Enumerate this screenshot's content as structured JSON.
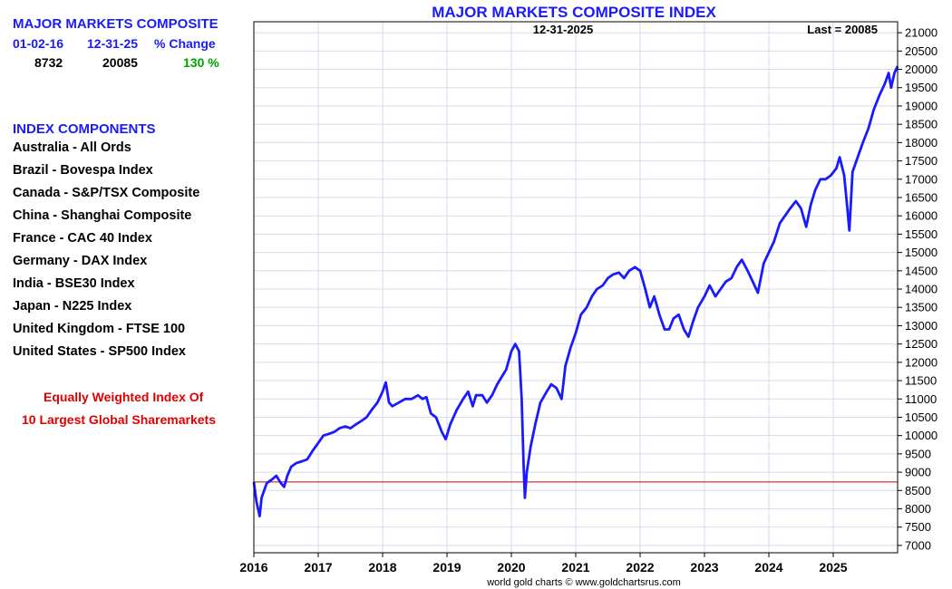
{
  "sidebar": {
    "title": "MAJOR MARKETS COMPOSITE",
    "headers": {
      "start": "01-02-16",
      "end": "12-31-25",
      "change": "% Change"
    },
    "values": {
      "start": "8732",
      "end": "20085",
      "change": "130 %"
    },
    "components_title": "INDEX COMPONENTS",
    "components": [
      "Australia - All Ords",
      "Brazil - Bovespa Index",
      "Canada - S&P/TSX Composite",
      "China - Shanghai Composite",
      "France - CAC 40 Index",
      "Germany - DAX Index",
      "India - BSE30 Index",
      "Japan - N225 Index",
      "United Kingdom - FTSE 100",
      "United States - SP500 Index"
    ],
    "note_line1": "Equally Weighted Index Of",
    "note_line2": "10 Largest Global Sharemarkets"
  },
  "colors": {
    "series": "#1a1aff",
    "grid": "#d8d8ee",
    "reference": "#cc0000",
    "change_positive": "#00a000"
  },
  "chart_data": {
    "type": "line",
    "title": "MAJOR MARKETS COMPOSITE INDEX",
    "date_label": "12-31-2025",
    "last_label": "Last = 20085",
    "credit": "world gold charts © www.goldchartsrus.com",
    "xlim": [
      2016,
      2026
    ],
    "ylim": [
      6800,
      21300
    ],
    "x_ticks": [
      2016,
      2017,
      2018,
      2019,
      2020,
      2021,
      2022,
      2023,
      2024,
      2025
    ],
    "y_ticks": [
      7000,
      7500,
      8000,
      8500,
      9000,
      9500,
      10000,
      10500,
      11000,
      11500,
      12000,
      12500,
      13000,
      13500,
      14000,
      14500,
      15000,
      15500,
      16000,
      16500,
      17000,
      17500,
      18000,
      18500,
      19000,
      19500,
      20000,
      20500,
      21000
    ],
    "reference_line": 8732,
    "series": [
      {
        "name": "Major Markets Composite",
        "points": [
          [
            2016.0,
            8732
          ],
          [
            2016.04,
            8200
          ],
          [
            2016.09,
            7800
          ],
          [
            2016.12,
            8300
          ],
          [
            2016.2,
            8700
          ],
          [
            2016.28,
            8800
          ],
          [
            2016.35,
            8900
          ],
          [
            2016.42,
            8700
          ],
          [
            2016.47,
            8600
          ],
          [
            2016.52,
            8900
          ],
          [
            2016.58,
            9150
          ],
          [
            2016.66,
            9250
          ],
          [
            2016.75,
            9300
          ],
          [
            2016.83,
            9350
          ],
          [
            2016.92,
            9600
          ],
          [
            2017.0,
            9800
          ],
          [
            2017.08,
            10000
          ],
          [
            2017.17,
            10050
          ],
          [
            2017.25,
            10100
          ],
          [
            2017.33,
            10200
          ],
          [
            2017.42,
            10250
          ],
          [
            2017.5,
            10200
          ],
          [
            2017.58,
            10300
          ],
          [
            2017.67,
            10400
          ],
          [
            2017.75,
            10500
          ],
          [
            2017.83,
            10700
          ],
          [
            2017.92,
            10900
          ],
          [
            2018.0,
            11200
          ],
          [
            2018.05,
            11450
          ],
          [
            2018.1,
            10900
          ],
          [
            2018.15,
            10800
          ],
          [
            2018.25,
            10900
          ],
          [
            2018.35,
            11000
          ],
          [
            2018.45,
            11000
          ],
          [
            2018.55,
            11100
          ],
          [
            2018.62,
            11000
          ],
          [
            2018.68,
            11050
          ],
          [
            2018.75,
            10600
          ],
          [
            2018.83,
            10500
          ],
          [
            2018.92,
            10100
          ],
          [
            2018.98,
            9900
          ],
          [
            2019.05,
            10300
          ],
          [
            2019.15,
            10700
          ],
          [
            2019.25,
            11000
          ],
          [
            2019.33,
            11200
          ],
          [
            2019.4,
            10800
          ],
          [
            2019.45,
            11100
          ],
          [
            2019.55,
            11100
          ],
          [
            2019.62,
            10900
          ],
          [
            2019.7,
            11100
          ],
          [
            2019.78,
            11400
          ],
          [
            2019.85,
            11600
          ],
          [
            2019.92,
            11800
          ],
          [
            2020.0,
            12300
          ],
          [
            2020.06,
            12500
          ],
          [
            2020.12,
            12300
          ],
          [
            2020.16,
            11000
          ],
          [
            2020.19,
            9200
          ],
          [
            2020.21,
            8300
          ],
          [
            2020.24,
            9000
          ],
          [
            2020.3,
            9700
          ],
          [
            2020.37,
            10300
          ],
          [
            2020.45,
            10900
          ],
          [
            2020.55,
            11200
          ],
          [
            2020.62,
            11400
          ],
          [
            2020.7,
            11300
          ],
          [
            2020.78,
            11000
          ],
          [
            2020.84,
            11900
          ],
          [
            2020.92,
            12400
          ],
          [
            2021.0,
            12800
          ],
          [
            2021.08,
            13300
          ],
          [
            2021.17,
            13500
          ],
          [
            2021.25,
            13800
          ],
          [
            2021.33,
            14000
          ],
          [
            2021.42,
            14100
          ],
          [
            2021.5,
            14300
          ],
          [
            2021.58,
            14400
          ],
          [
            2021.67,
            14450
          ],
          [
            2021.75,
            14300
          ],
          [
            2021.83,
            14500
          ],
          [
            2021.92,
            14600
          ],
          [
            2022.0,
            14500
          ],
          [
            2022.08,
            14000
          ],
          [
            2022.15,
            13500
          ],
          [
            2022.22,
            13800
          ],
          [
            2022.3,
            13300
          ],
          [
            2022.38,
            12900
          ],
          [
            2022.45,
            12900
          ],
          [
            2022.52,
            13200
          ],
          [
            2022.6,
            13300
          ],
          [
            2022.68,
            12900
          ],
          [
            2022.75,
            12700
          ],
          [
            2022.82,
            13100
          ],
          [
            2022.9,
            13500
          ],
          [
            2023.0,
            13800
          ],
          [
            2023.08,
            14100
          ],
          [
            2023.17,
            13800
          ],
          [
            2023.25,
            14000
          ],
          [
            2023.33,
            14200
          ],
          [
            2023.42,
            14300
          ],
          [
            2023.5,
            14600
          ],
          [
            2023.58,
            14800
          ],
          [
            2023.67,
            14500
          ],
          [
            2023.75,
            14200
          ],
          [
            2023.83,
            13900
          ],
          [
            2023.92,
            14700
          ],
          [
            2024.0,
            15000
          ],
          [
            2024.08,
            15300
          ],
          [
            2024.17,
            15800
          ],
          [
            2024.25,
            16000
          ],
          [
            2024.33,
            16200
          ],
          [
            2024.42,
            16400
          ],
          [
            2024.5,
            16200
          ],
          [
            2024.58,
            15700
          ],
          [
            2024.65,
            16300
          ],
          [
            2024.72,
            16700
          ],
          [
            2024.8,
            17000
          ],
          [
            2024.88,
            17000
          ],
          [
            2024.96,
            17100
          ],
          [
            2025.05,
            17300
          ],
          [
            2025.1,
            17600
          ],
          [
            2025.17,
            17100
          ],
          [
            2025.22,
            16200
          ],
          [
            2025.25,
            15600
          ],
          [
            2025.3,
            17200
          ],
          [
            2025.38,
            17600
          ],
          [
            2025.46,
            18000
          ],
          [
            2025.55,
            18400
          ],
          [
            2025.63,
            18900
          ],
          [
            2025.72,
            19300
          ],
          [
            2025.8,
            19600
          ],
          [
            2025.86,
            19900
          ],
          [
            2025.9,
            19500
          ],
          [
            2025.95,
            19900
          ],
          [
            2026.0,
            20085
          ]
        ]
      }
    ]
  }
}
